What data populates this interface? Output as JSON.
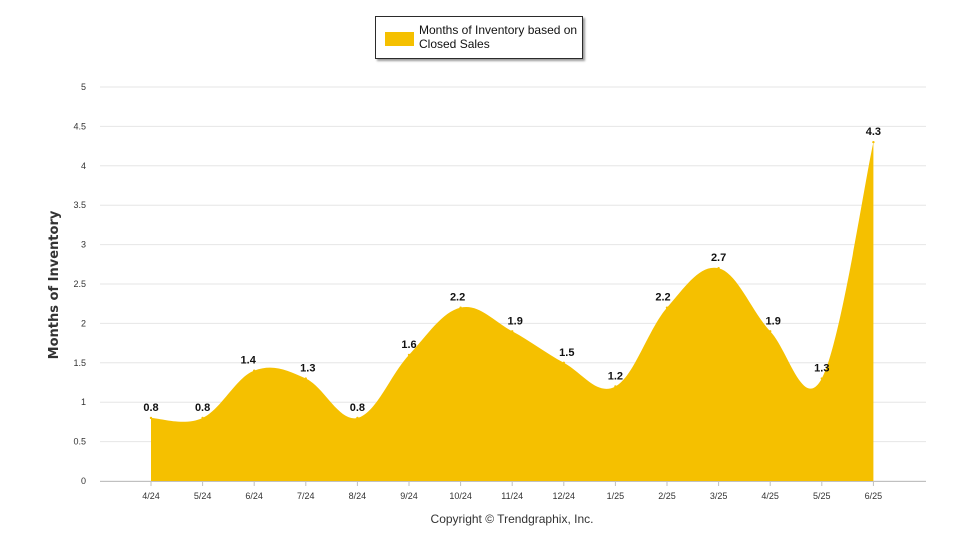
{
  "chart_data": {
    "type": "area",
    "categories": [
      "4/24",
      "5/24",
      "6/24",
      "7/24",
      "8/24",
      "9/24",
      "10/24",
      "11/24",
      "12/24",
      "1/25",
      "2/25",
      "3/25",
      "4/25",
      "5/25",
      "6/25"
    ],
    "series": [
      {
        "name": "Months of Inventory based on Closed Sales",
        "values": [
          0.8,
          0.8,
          1.4,
          1.3,
          0.8,
          1.6,
          2.2,
          1.9,
          1.5,
          1.2,
          2.2,
          2.7,
          1.9,
          1.3,
          4.3
        ],
        "color": "#f5c000"
      }
    ],
    "data_labels": [
      "0.8",
      "0.8",
      "1.4",
      "1.3",
      "0.8",
      "1.6",
      "2.2",
      "1.9",
      "1.5",
      "1.2",
      "2.2",
      "2.7",
      "1.9",
      "1.3",
      "4.3"
    ],
    "ylabel": "Months of Inventory",
    "xlabel": "",
    "ylim": [
      0,
      5
    ],
    "yticks": [
      "0",
      "0.5",
      "1",
      "1.5",
      "2",
      "2.5",
      "3",
      "3.5",
      "4",
      "4.5",
      "5"
    ],
    "grid": true,
    "legend_position": "top-center"
  },
  "footer": {
    "copyright": "Copyright © Trendgraphix, Inc."
  }
}
